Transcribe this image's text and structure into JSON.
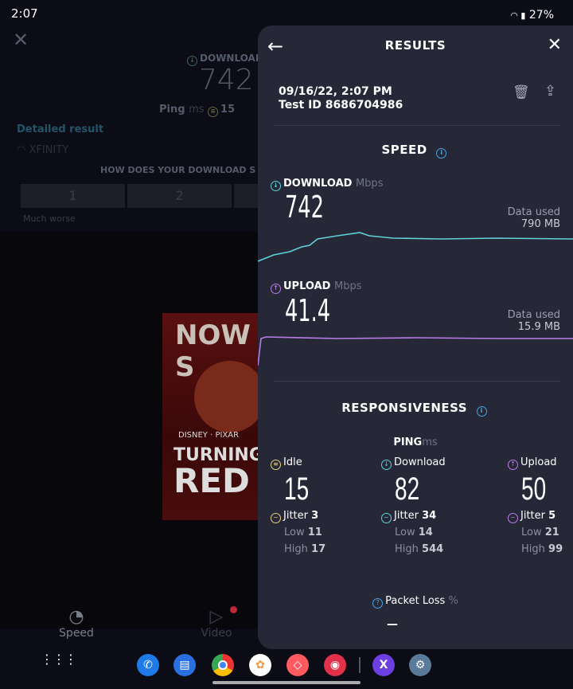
{
  "status_bar": {
    "time": "2:07",
    "battery": "27%"
  },
  "background": {
    "download_label": "DOWNLOAD",
    "download_value": "742",
    "ping_label": "Ping",
    "ping_unit": "ms",
    "ping_value": "15",
    "detailed_result": "Detailed result",
    "isp": "XFINITY",
    "survey_question": "HOW DOES YOUR DOWNLOAD S",
    "ratings": [
      "1",
      "2"
    ],
    "rating_caption": "Much worse",
    "poster_text": [
      "NOW S",
      "DISNEY · PIXAR",
      "TURNING",
      "RED"
    ],
    "nav": [
      {
        "label": "Speed",
        "icon": "speedometer-icon"
      },
      {
        "label": "Video",
        "icon": "play-icon"
      }
    ]
  },
  "results": {
    "title": "RESULTS",
    "date": "09/16/22, 2:07 PM",
    "test_id": "Test ID 8686704986",
    "speed_title": "SPEED",
    "download": {
      "label": "DOWNLOAD",
      "unit": "Mbps",
      "value": "742",
      "data_used_label": "Data used",
      "data_used": "790 MB",
      "color": "#5fd3d6"
    },
    "upload": {
      "label": "UPLOAD",
      "unit": "Mbps",
      "value": "41.4",
      "data_used_label": "Data used",
      "data_used": "15.9 MB",
      "color": "#b97de8"
    },
    "responsiveness_title": "RESPONSIVENESS",
    "ping_label": "PING",
    "ping_unit": "ms",
    "columns": [
      {
        "label": "Idle",
        "value": "15",
        "jitter_label": "Jitter",
        "jitter": "3",
        "low_label": "Low",
        "low": "11",
        "high_label": "High",
        "high": "17",
        "color": "#e6d27a"
      },
      {
        "label": "Download",
        "value": "82",
        "jitter_label": "Jitter",
        "jitter": "34",
        "low_label": "Low",
        "low": "14",
        "high_label": "High",
        "high": "544",
        "color": "#5fd3d6"
      },
      {
        "label": "Upload",
        "value": "50",
        "jitter_label": "Jitter",
        "jitter": "5",
        "low_label": "Low",
        "low": "21",
        "high_label": "High",
        "high": "99",
        "color": "#b97de8"
      }
    ],
    "packet_loss_label": "Packet Loss",
    "packet_loss_unit": "%",
    "packet_loss_value": "—"
  },
  "accent": "#4aa3e0"
}
